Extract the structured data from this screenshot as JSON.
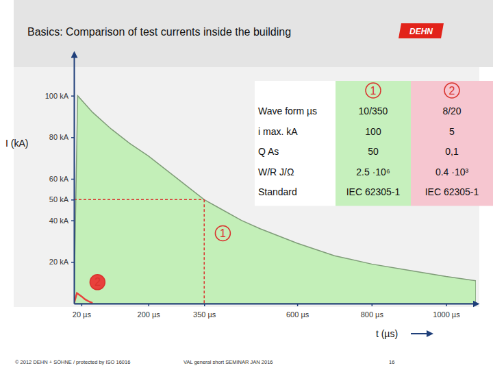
{
  "chart_data": {
    "type": "area",
    "title": "Basics: Comparison of test currents inside the building",
    "x_label": "t (µs)",
    "y_label": "I (kA)",
    "xlim": [
      0,
      1080
    ],
    "xticks": [
      {
        "value": 20,
        "label": "20 µs"
      },
      {
        "value": 200,
        "label": "200 µs"
      },
      {
        "value": 350,
        "label": "350 µs"
      },
      {
        "value": 600,
        "label": "600 µs"
      },
      {
        "value": 800,
        "label": "800 µs"
      },
      {
        "value": 1000,
        "label": "1000 µs"
      }
    ],
    "ylim": [
      0,
      120
    ],
    "yticks": [
      {
        "value": 20,
        "label": "20 kA"
      },
      {
        "value": 40,
        "label": "40 kA"
      },
      {
        "value": 50,
        "label": "50 kA"
      },
      {
        "value": 60,
        "label": "60 kA"
      },
      {
        "value": 80,
        "label": "80 kA"
      },
      {
        "value": 100,
        "label": "100 kA"
      }
    ],
    "grid": false,
    "series": [
      {
        "name": "1",
        "type": "area",
        "color": "#c3efb8",
        "x": [
          0,
          10,
          50,
          100,
          150,
          200,
          250,
          300,
          350,
          400,
          450,
          500,
          600,
          700,
          800,
          900,
          1000,
          1080
        ],
        "values": [
          0,
          100,
          92,
          84,
          77,
          71,
          64,
          57,
          50,
          45,
          40,
          36,
          29,
          23,
          19,
          16,
          13,
          11
        ]
      },
      {
        "name": "2",
        "type": "line",
        "color": "#e8413c",
        "x": [
          0,
          8,
          20,
          30,
          40,
          50
        ],
        "values": [
          0,
          5,
          3.5,
          2,
          1,
          0.3
        ]
      }
    ]
  },
  "table": {
    "columns": [
      "1",
      "2"
    ],
    "rows": [
      {
        "label": "Wave form µs",
        "values": [
          "10/350",
          "8/20"
        ]
      },
      {
        "label": "i max. kA",
        "values": [
          "100",
          "5"
        ]
      },
      {
        "label": "Q As",
        "values": [
          "50",
          "0,1"
        ]
      },
      {
        "label": "W/R J/Ω",
        "values": [
          "2.5 ·10⁶",
          "0.4 ·10³"
        ]
      },
      {
        "label": "Standard",
        "values": [
          "IEC 62305-1",
          "IEC 62305-1"
        ]
      }
    ]
  },
  "logo": "DEHN",
  "footer": {
    "copyright": "© 2012 DEHN + SÖHNE / protected by ISO 16016",
    "event": "VAL general short SEMINAR JAN 2016",
    "page": 16
  }
}
